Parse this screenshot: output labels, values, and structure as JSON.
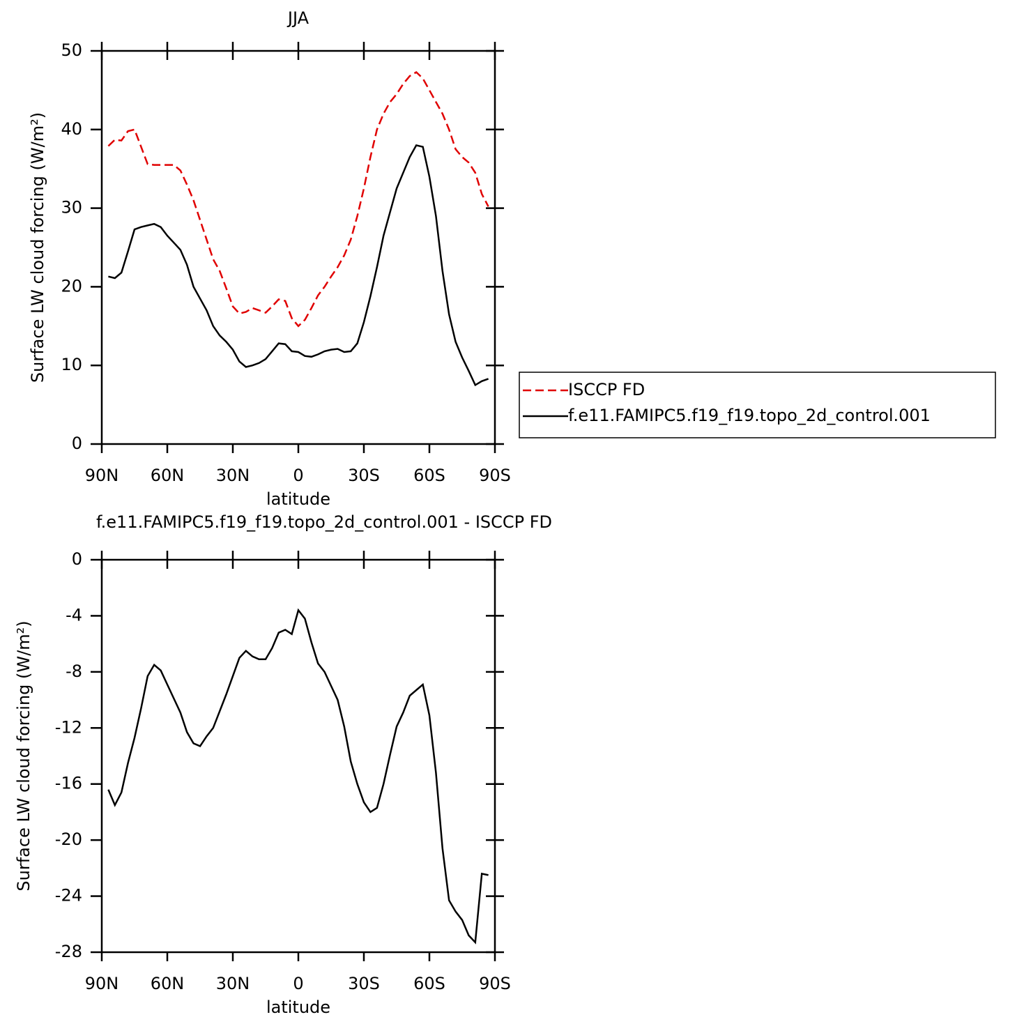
{
  "chart_data": [
    {
      "type": "line",
      "title": "JJA",
      "xlabel": "latitude",
      "ylabel": "Surface LW cloud forcing (W/m²)",
      "x": [
        87,
        84,
        81,
        78,
        75,
        72,
        69,
        66,
        63,
        60,
        57,
        54,
        51,
        48,
        45,
        42,
        39,
        36,
        33,
        30,
        27,
        24,
        21,
        18,
        15,
        12,
        9,
        6,
        3,
        0,
        -3,
        -6,
        -9,
        -12,
        -15,
        -18,
        -21,
        -24,
        -27,
        -30,
        -33,
        -36,
        -39,
        -42,
        -45,
        -48,
        -51,
        -54,
        -57,
        -60,
        -63,
        -66,
        -69,
        -72,
        -75,
        -78,
        -81,
        -84,
        -87
      ],
      "series": [
        {
          "name": "ISCCP FD",
          "color": "#e00000",
          "linestyle": "dashed",
          "values": [
            37.9,
            38.7,
            38.6,
            39.8,
            40.0,
            37.8,
            35.6,
            35.5,
            35.5,
            35.5,
            35.5,
            34.8,
            33.0,
            31.0,
            28.5,
            26.0,
            23.5,
            22.0,
            19.8,
            17.5,
            16.6,
            16.8,
            17.3,
            17.0,
            16.7,
            17.5,
            18.4,
            18.2,
            16.0,
            15.0,
            15.8,
            17.3,
            18.9,
            20.0,
            21.3,
            22.5,
            24.0,
            26.0,
            29.0,
            32.5,
            36.5,
            40.0,
            42.0,
            43.5,
            44.5,
            45.8,
            46.8,
            47.3,
            46.5,
            45.0,
            43.5,
            42.0,
            40.0,
            37.5,
            36.5,
            35.8,
            34.5,
            31.8,
            30.2
          ]
        },
        {
          "name": "f.e11.FAMIPC5.f19_f19.topo_2d_control.001",
          "color": "#000000",
          "linestyle": "solid",
          "values": [
            21.3,
            21.1,
            21.8,
            24.5,
            27.3,
            27.6,
            27.8,
            28.0,
            27.6,
            26.5,
            25.6,
            24.7,
            22.8,
            20.0,
            18.5,
            17.0,
            15.0,
            13.8,
            13.0,
            12.0,
            10.5,
            9.8,
            10.0,
            10.3,
            10.8,
            11.8,
            12.8,
            12.7,
            11.8,
            11.7,
            11.2,
            11.1,
            11.4,
            11.8,
            12.0,
            12.1,
            11.7,
            11.8,
            12.8,
            15.5,
            18.8,
            22.5,
            26.5,
            29.5,
            32.5,
            34.5,
            36.5,
            38.0,
            37.8,
            34.0,
            29.0,
            22.0,
            16.5,
            13.0,
            11.0,
            9.3,
            7.5,
            8.0,
            8.3
          ]
        }
      ],
      "xlim": [
        90,
        -90
      ],
      "xticks": [
        {
          "value": 90,
          "label": "90N"
        },
        {
          "value": 60,
          "label": "60N"
        },
        {
          "value": 30,
          "label": "30N"
        },
        0,
        {
          "value": -30,
          "label": "30S"
        },
        {
          "value": -60,
          "label": "60S"
        },
        {
          "value": -90,
          "label": "90S"
        }
      ],
      "ylim": [
        0,
        50
      ],
      "yticks": [
        0,
        10,
        20,
        30,
        40,
        50
      ],
      "legend": "outside-right"
    },
    {
      "type": "line",
      "title": "f.e11.FAMIPC5.f19_f19.topo_2d_control.001 - ISCCP FD",
      "xlabel": "latitude",
      "ylabel": "Surface LW cloud forcing (W/m²)",
      "x": [
        87,
        84,
        81,
        78,
        75,
        72,
        69,
        66,
        63,
        60,
        57,
        54,
        51,
        48,
        45,
        42,
        39,
        36,
        33,
        30,
        27,
        24,
        21,
        18,
        15,
        12,
        9,
        6,
        3,
        0,
        -3,
        -6,
        -9,
        -12,
        -15,
        -18,
        -21,
        -24,
        -27,
        -30,
        -33,
        -36,
        -39,
        -42,
        -45,
        -48,
        -51,
        -54,
        -57,
        -60,
        -63,
        -66,
        -69,
        -72,
        -75,
        -78,
        -81,
        -84,
        -87
      ],
      "series": [
        {
          "color": "#000000",
          "linestyle": "solid",
          "values": [
            -16.4,
            -17.5,
            -16.6,
            -14.5,
            -12.7,
            -10.6,
            -8.3,
            -7.5,
            -7.9,
            -8.9,
            -9.9,
            -10.9,
            -12.3,
            -13.1,
            -13.3,
            -12.6,
            -12.0,
            -10.8,
            -9.6,
            -8.3,
            -7.0,
            -6.5,
            -6.9,
            -7.1,
            -7.1,
            -6.3,
            -5.2,
            -5.0,
            -5.3,
            -3.6,
            -4.2,
            -5.9,
            -7.4,
            -8.0,
            -9.0,
            -10.0,
            -11.9,
            -14.4,
            -16.0,
            -17.3,
            -18.0,
            -17.7,
            -16.0,
            -13.9,
            -11.9,
            -10.9,
            -9.7,
            -9.3,
            -8.9,
            -11.1,
            -15.2,
            -20.6,
            -24.3,
            -25.1,
            -25.7,
            -26.8,
            -27.3,
            -22.4,
            -22.5
          ]
        }
      ],
      "xlim": [
        90,
        -90
      ],
      "xticks": [
        {
          "value": 90,
          "label": "90N"
        },
        {
          "value": 60,
          "label": "60N"
        },
        {
          "value": 30,
          "label": "30N"
        },
        0,
        {
          "value": -30,
          "label": "30S"
        },
        {
          "value": -60,
          "label": "60S"
        },
        {
          "value": -90,
          "label": "90S"
        }
      ],
      "ylim": [
        -28,
        0
      ],
      "yticks": [
        -28,
        -24,
        -20,
        -16,
        -12,
        -8,
        -4,
        0
      ]
    }
  ]
}
